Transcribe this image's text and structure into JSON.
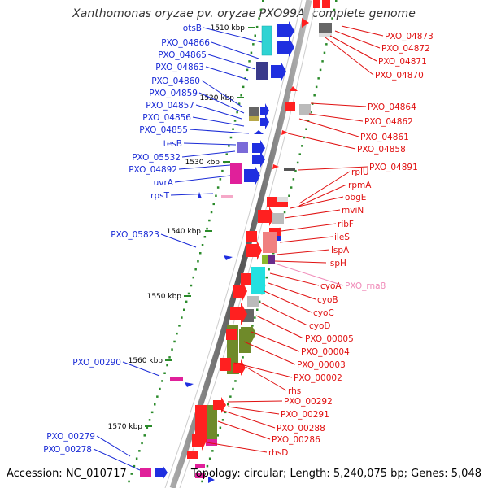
{
  "title": "Xanthomonas oryzae pv. oryzae PXO99A, complete genome",
  "footer": {
    "accession": "Accession: NC_010717",
    "topology": "Topology: circular; Length: 5,240,075 bp; Genes: 5,048"
  },
  "kbp_labels": [
    "1510 kbp",
    "1520 kbp",
    "1530 kbp",
    "1540 kbp",
    "1550 kbp",
    "1560 kbp",
    "1570 kbp"
  ],
  "left_genes": [
    "otsB",
    "PXO_04866",
    "PXO_04865",
    "PXO_04863",
    "PXO_04860",
    "PXO_04859",
    "PXO_04857",
    "PXO_04856",
    "PXO_04855",
    "tesB",
    "PXO_05532",
    "PXO_04892",
    "uvrA",
    "rpsT",
    "PXO_05823",
    "PXO_00290",
    "PXO_00279",
    "PXO_00278"
  ],
  "right_genes": [
    "PXO_04873",
    "PXO_04872",
    "PXO_04871",
    "PXO_04870",
    "PXO_04864",
    "PXO_04862",
    "PXO_04861",
    "PXO_04858",
    "PXO_04891",
    "rplU",
    "rpmA",
    "obgE",
    "mviN",
    "ribF",
    "ileS",
    "lspA",
    "ispH",
    "cyoA",
    "cyoB",
    "cyoC",
    "cyoD",
    "PXO_00005",
    "PXO_00004",
    "PXO_00003",
    "PXO_00002",
    "rhs",
    "PXO_00292",
    "PXO_00291",
    "PXO_00288",
    "PXO_00286",
    "rhsD"
  ],
  "rna_gene": "PXO_rna8",
  "colors": {
    "left_label": "#1a2bd6",
    "right_label": "#e01010",
    "rna_label": "#f08ab8",
    "backbone": "#888888",
    "tick": "#2a8a2a"
  }
}
